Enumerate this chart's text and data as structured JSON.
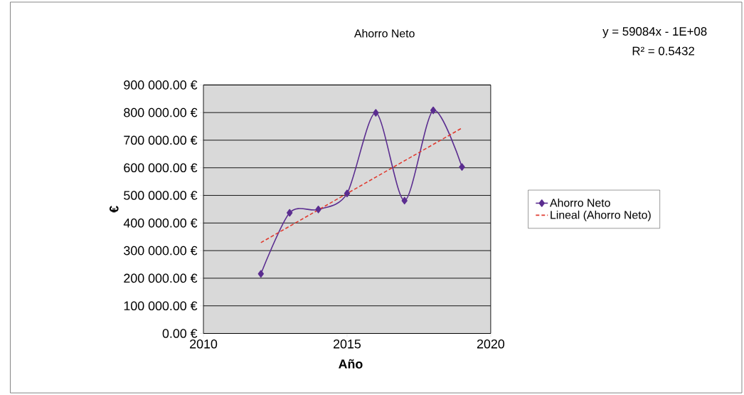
{
  "chart_data": {
    "type": "line",
    "title": "Ahorro Neto",
    "xlabel": "Año",
    "ylabel": "€",
    "annotations": [
      "y = 59084x - 1E+08",
      "R² = 0.5432"
    ],
    "x": [
      2012,
      2013,
      2014,
      2015,
      2016,
      2017,
      2018,
      2019
    ],
    "series": [
      {
        "name": "Ahorro Neto",
        "color": "#5b2d90",
        "marker": "diamond",
        "line_style": "solid",
        "values": [
          216000,
          437000,
          449000,
          507000,
          799000,
          481000,
          808000,
          603000
        ]
      },
      {
        "name": "Lineal (Ahorro Neto)",
        "type": "line",
        "color": "#e03c31",
        "marker": "none",
        "line_style": "dashed",
        "x": [
          2012,
          2019
        ],
        "values": [
          329000,
          744000
        ]
      }
    ],
    "xlim": [
      2010,
      2020
    ],
    "xticks": [
      2010,
      2015,
      2020
    ],
    "ylim": [
      0,
      900000
    ],
    "yticks": [
      {
        "value": 0,
        "label": "0.00 €"
      },
      {
        "value": 100000,
        "label": "100 000.00 €"
      },
      {
        "value": 200000,
        "label": "200 000.00 €"
      },
      {
        "value": 300000,
        "label": "300 000.00 €"
      },
      {
        "value": 400000,
        "label": "400 000.00 €"
      },
      {
        "value": 500000,
        "label": "500 000.00 €"
      },
      {
        "value": 600000,
        "label": "600 000.00 €"
      },
      {
        "value": 700000,
        "label": "700 000.00 €"
      },
      {
        "value": 800000,
        "label": "800 000.00 €"
      },
      {
        "value": 900000,
        "label": "900 000.00 €"
      }
    ],
    "grid": "y",
    "legend": "right"
  }
}
